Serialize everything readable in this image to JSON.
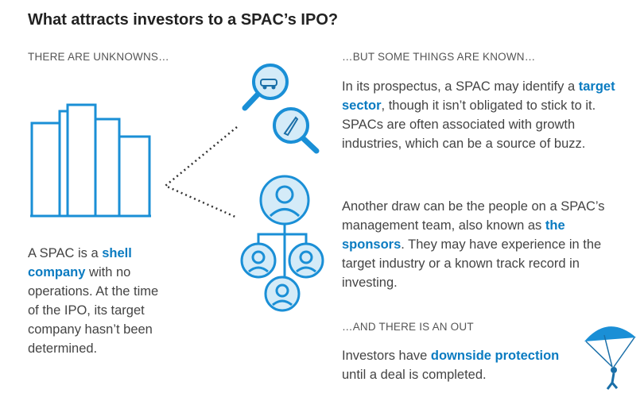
{
  "title": "What attracts investors to a SPAC’s IPO?",
  "unknowns": {
    "heading": "THERE ARE UNKNOWNS…",
    "paragraph": {
      "before": "A SPAC is a ",
      "highlight": "shell company",
      "after": " with no operations. At the time of the IPO, its target company hasn’t been determined."
    }
  },
  "knowns": {
    "heading": "…BUT SOME THINGS ARE KNOWN…",
    "paragraphs": [
      {
        "before": "In its prospectus, a SPAC may identify a ",
        "highlight": "target sector",
        "after": ", though it isn’t obligated to stick to it. SPACs are often associated with growth industries, which can be a source of buzz."
      },
      {
        "before": "Another draw can be the people on a SPAC’s management team, also known as ",
        "highlight": "the sponsors",
        "after": ". They may have experience in the target industry or a known track record in investing."
      }
    ]
  },
  "out": {
    "heading": "…AND THERE IS AN OUT",
    "paragraph": {
      "before": "Investors have ",
      "highlight": "downside protection",
      "after": " until a deal is completed."
    }
  }
}
